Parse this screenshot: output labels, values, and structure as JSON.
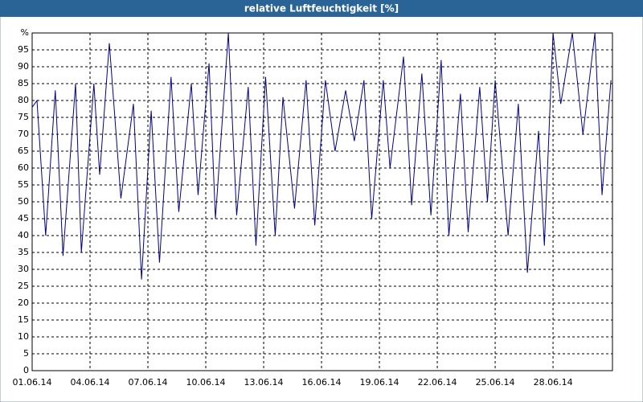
{
  "chart_data": {
    "type": "line",
    "title": "relative Luftfeuchtigkeit [%]",
    "x": [
      0,
      0.25,
      0.7,
      1.2,
      1.6,
      2.25,
      2.55,
      3.2,
      3.5,
      4.0,
      4.6,
      5.25,
      5.67,
      6.17,
      6.6,
      7.2,
      7.6,
      8.25,
      8.6,
      9.17,
      9.5,
      10.17,
      10.6,
      11.2,
      11.6,
      12.1,
      12.6,
      13.0,
      13.6,
      14.2,
      14.65,
      15.2,
      15.7,
      16.25,
      16.7,
      17.2,
      17.6,
      18.2,
      18.55,
      19.25,
      19.67,
      20.2,
      20.67,
      21.2,
      21.6,
      22.2,
      22.6,
      23.2,
      23.6,
      24.0,
      24.67,
      25.2,
      25.67,
      26.25,
      26.55,
      27.0,
      27.4,
      28.0,
      28.55,
      29.17,
      29.54,
      30.0
    ],
    "series": [
      {
        "color": "#00008b",
        "values": [
          78,
          80,
          40,
          83,
          34,
          85,
          35,
          85,
          58,
          97,
          51,
          79,
          27,
          77,
          32,
          87,
          47,
          85,
          52,
          91,
          45,
          100,
          46,
          84,
          37,
          87,
          40,
          81,
          48,
          86,
          43,
          86,
          65,
          83,
          68,
          86,
          45,
          86,
          60,
          93,
          49,
          88,
          46,
          92,
          40,
          82,
          41,
          84,
          50,
          86,
          40,
          79,
          29,
          71,
          37,
          100,
          79,
          100,
          70,
          100,
          52,
          86
        ]
      }
    ],
    "xlim": [
      0,
      30.08
    ],
    "xticks": [
      {
        "value": 0,
        "label": "01.06.14"
      },
      {
        "value": 3,
        "label": "04.06.14"
      },
      {
        "value": 6,
        "label": "07.06.14"
      },
      {
        "value": 9,
        "label": "10.06.14"
      },
      {
        "value": 12,
        "label": "13.06.14"
      },
      {
        "value": 15,
        "label": "16.06.14"
      },
      {
        "value": 18,
        "label": "19.06.14"
      },
      {
        "value": 21,
        "label": "22.06.14"
      },
      {
        "value": 24,
        "label": "25.06.14"
      },
      {
        "value": 27,
        "label": "28.06.14"
      }
    ],
    "ylim": [
      0,
      100
    ],
    "yticks": [
      0,
      5,
      10,
      15,
      20,
      25,
      30,
      35,
      40,
      45,
      50,
      55,
      60,
      65,
      70,
      75,
      80,
      85,
      90,
      95,
      {
        "value": 100,
        "label": "%"
      }
    ],
    "grid": true
  }
}
